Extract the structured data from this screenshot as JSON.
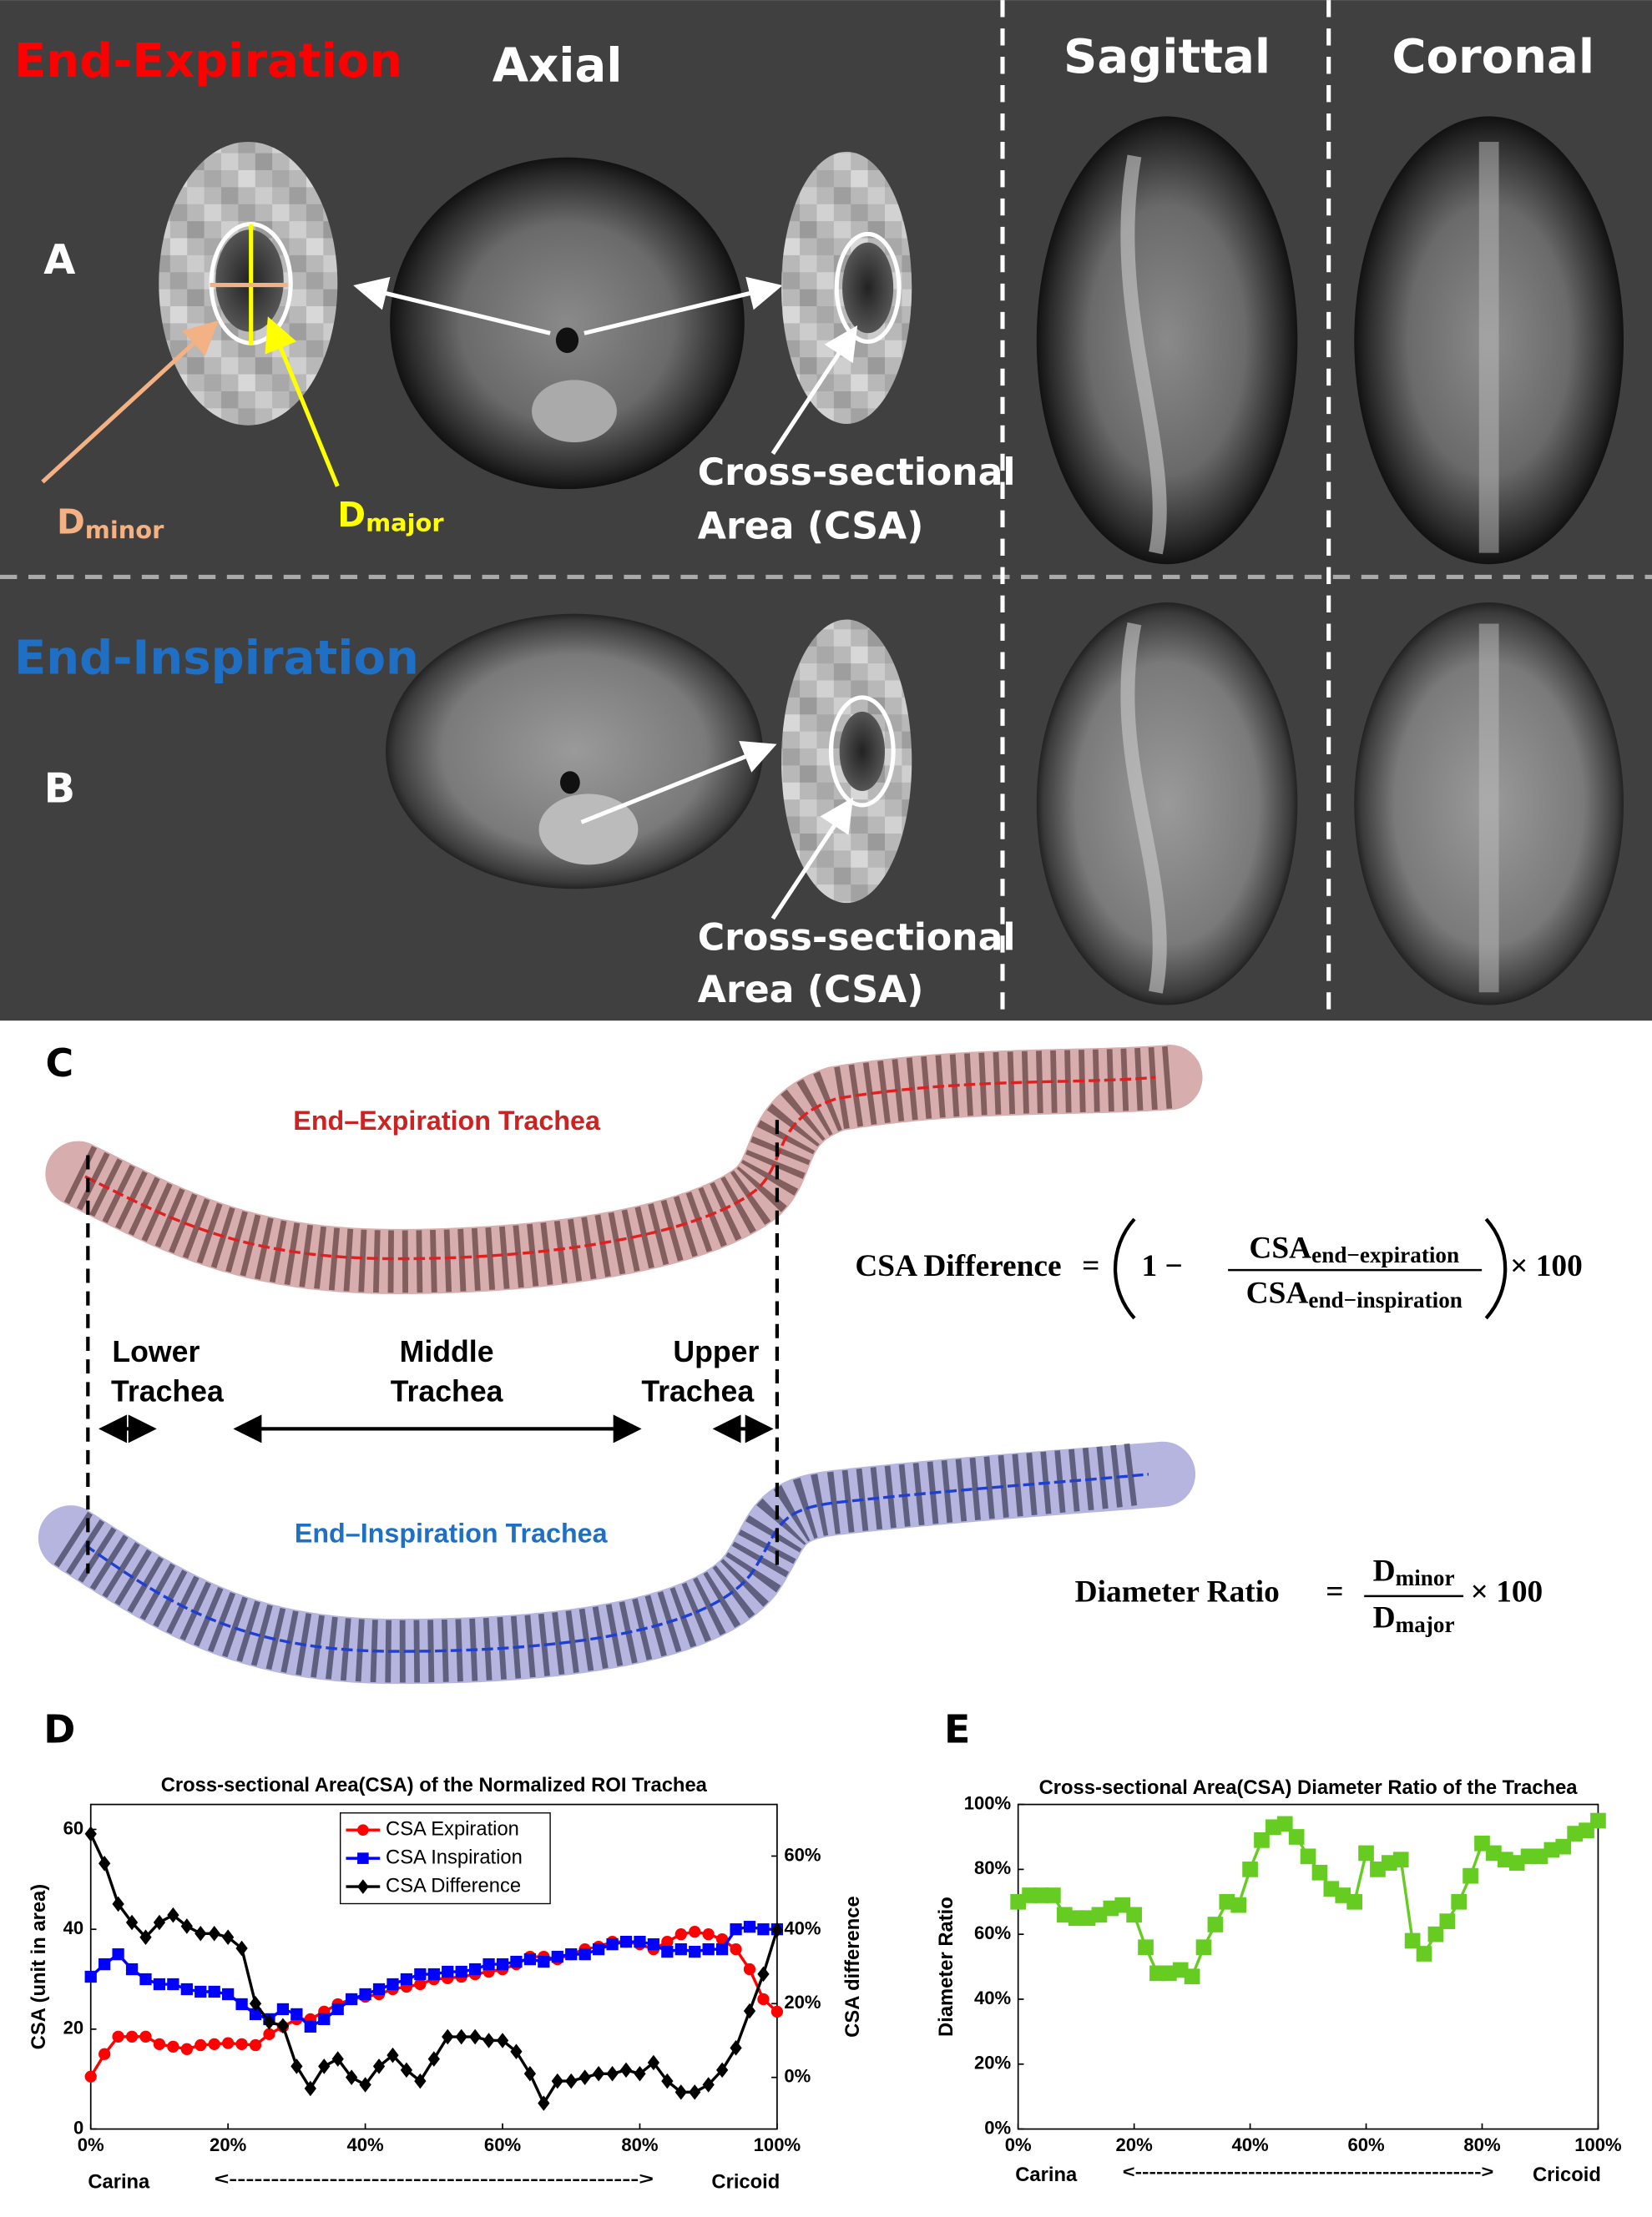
{
  "panel_labels": {
    "A": "A",
    "B": "B",
    "C": "C",
    "D": "D",
    "E": "E"
  },
  "headers": {
    "end_expiration": "End-Expiration",
    "axial": "Axial",
    "sagittal": "Sagittal",
    "coronal": "Coronal",
    "end_inspiration": "End-Inspiration"
  },
  "annotations": {
    "d_minor": {
      "base": "D",
      "sub": "minor"
    },
    "d_major": {
      "base": "D",
      "sub": "major"
    },
    "csa_a": [
      "Cross-sectional",
      "Area (CSA)"
    ],
    "csa_b": [
      "Cross-sectional",
      "Area (CSA)"
    ]
  },
  "trachea": {
    "expiration": "End–Expiration Trachea",
    "inspiration": "End–Inspiration Trachea",
    "lower": [
      "Lower",
      "Trachea"
    ],
    "middle": [
      "Middle",
      "Trachea"
    ],
    "upper": [
      "Upper",
      "Trachea"
    ]
  },
  "formulas": {
    "csa_difference": {
      "lhs": "CSA Difference",
      "eq": "=",
      "one_minus": "1 −",
      "num": {
        "base": "CSA",
        "sub": "end−expiration"
      },
      "den": {
        "base": "CSA",
        "sub": "end−inspiration"
      },
      "times": "× 100"
    },
    "diameter_ratio": {
      "lhs": "Diameter Ratio",
      "eq": "=",
      "num": {
        "base": "D",
        "sub": "minor"
      },
      "den": {
        "base": "D",
        "sub": "major"
      },
      "times": "× 100"
    }
  },
  "chart_data": [
    {
      "type": "line",
      "title": "Cross-sectional Area(CSA) of the Normalized ROI Trachea",
      "ylabel": "CSA (unit in area)",
      "y2label": "CSA difference",
      "x_left_label": "Carina",
      "x_right_label": "Cricoid",
      "x_arrow": "<------------------------------------------------->",
      "x": [
        0,
        2,
        4,
        6,
        8,
        10,
        12,
        14,
        16,
        18,
        20,
        22,
        24,
        26,
        28,
        30,
        32,
        34,
        36,
        38,
        40,
        42,
        44,
        46,
        48,
        50,
        52,
        54,
        56,
        58,
        60,
        62,
        64,
        66,
        68,
        70,
        72,
        74,
        76,
        78,
        80,
        82,
        84,
        86,
        88,
        90,
        92,
        94,
        96,
        98,
        100
      ],
      "xlim": [
        0,
        100
      ],
      "xticks": [
        {
          "value": 0,
          "label": "0%"
        },
        {
          "value": 20,
          "label": "20%"
        },
        {
          "value": 40,
          "label": "40%"
        },
        {
          "value": 60,
          "label": "60%"
        },
        {
          "value": 80,
          "label": "80%"
        },
        {
          "value": 100,
          "label": "100%"
        }
      ],
      "ylim": [
        0,
        65
      ],
      "yticks": [
        0,
        20,
        40,
        60
      ],
      "y2lim": [
        -14,
        74
      ],
      "y2ticks": [
        {
          "value": 0,
          "label": "0%"
        },
        {
          "value": 20,
          "label": "20%"
        },
        {
          "value": 40,
          "label": "40%"
        },
        {
          "value": 60,
          "label": "60%"
        }
      ],
      "legend": "upper center",
      "series": [
        {
          "name": "CSA Expiration",
          "color": "#ff0000",
          "marker": "circle",
          "values": [
            10.5,
            15,
            18.5,
            18.5,
            18.5,
            17,
            16.5,
            16,
            16.8,
            17,
            17.2,
            17,
            16.8,
            19,
            20.5,
            22,
            22,
            23.5,
            25,
            26,
            26.5,
            27,
            28,
            28.5,
            29,
            30,
            30.2,
            30.5,
            31,
            31.5,
            32,
            33,
            34.5,
            34.5,
            34,
            35,
            36,
            36.5,
            37.5,
            37.5,
            37,
            36,
            37.5,
            39,
            39.5,
            39,
            38,
            36,
            32,
            26,
            23.5
          ]
        },
        {
          "name": "CSA Inspiration",
          "color": "#0000ff",
          "marker": "square",
          "values": [
            30.5,
            33,
            35,
            32,
            30,
            29,
            29,
            28,
            27.5,
            27.5,
            27,
            25,
            23,
            22,
            24,
            23,
            20.5,
            22,
            24,
            26,
            27,
            28,
            29,
            30,
            31,
            31,
            31.5,
            31.5,
            32,
            33,
            33,
            33.5,
            34,
            33.5,
            34.5,
            35,
            35,
            36,
            37,
            37.5,
            37.5,
            37,
            35.5,
            36,
            35.5,
            36,
            36,
            40,
            40.5,
            40,
            40
          ]
        },
        {
          "name": "CSA Difference",
          "color": "#000000",
          "marker": "diamond",
          "axis": "y2",
          "values": [
            66,
            58,
            47,
            42,
            38,
            42,
            44,
            41,
            39,
            39,
            38,
            35,
            20,
            15,
            14,
            3,
            -3,
            3,
            5,
            0,
            -2,
            3,
            6,
            2,
            -1,
            5,
            11,
            11,
            11,
            10,
            10,
            7,
            1,
            -7,
            -1,
            -1,
            0,
            1,
            1,
            2,
            1,
            4,
            -1,
            -4,
            -4,
            -2,
            2,
            8,
            18,
            28,
            40
          ]
        }
      ]
    },
    {
      "type": "line",
      "title": "Cross-sectional Area(CSA) Diameter Ratio of the Trachea",
      "ylabel": "Diameter Ratio",
      "x_left_label": "Carina",
      "x_right_label": "Cricoid",
      "x_arrow": "<------------------------------------------------->",
      "x": [
        0,
        2,
        4,
        6,
        8,
        10,
        12,
        14,
        16,
        18,
        20,
        22,
        24,
        26,
        28,
        30,
        32,
        34,
        36,
        38,
        40,
        42,
        44,
        46,
        48,
        50,
        52,
        54,
        56,
        58,
        60,
        62,
        64,
        66,
        68,
        70,
        72,
        74,
        76,
        78,
        80,
        82,
        84,
        86,
        88,
        90,
        92,
        94,
        96,
        98,
        100
      ],
      "xlim": [
        0,
        100
      ],
      "xticks": [
        {
          "value": 0,
          "label": "0%"
        },
        {
          "value": 20,
          "label": "20%"
        },
        {
          "value": 40,
          "label": "40%"
        },
        {
          "value": 60,
          "label": "60%"
        },
        {
          "value": 80,
          "label": "80%"
        },
        {
          "value": 100,
          "label": "100%"
        }
      ],
      "ylim": [
        0,
        100
      ],
      "yticks": [
        {
          "value": 0,
          "label": "0%"
        },
        {
          "value": 20,
          "label": "20%"
        },
        {
          "value": 40,
          "label": "40%"
        },
        {
          "value": 60,
          "label": "60%"
        },
        {
          "value": 80,
          "label": "80%"
        },
        {
          "value": 100,
          "label": "100%"
        }
      ],
      "series": [
        {
          "name": "Diameter Ratio",
          "color": "#66cc22",
          "marker": "square",
          "values": [
            70,
            72,
            72,
            72,
            66,
            65,
            65,
            66,
            68,
            69,
            66,
            56,
            48,
            48,
            49,
            47,
            56,
            63,
            70,
            69,
            80,
            89,
            93,
            94,
            90,
            84,
            79,
            74,
            72,
            70,
            85,
            80,
            82,
            83,
            58,
            54,
            60,
            64,
            70,
            78,
            88,
            85,
            83,
            82,
            84,
            84,
            86,
            87,
            91,
            92,
            95
          ]
        }
      ]
    }
  ]
}
